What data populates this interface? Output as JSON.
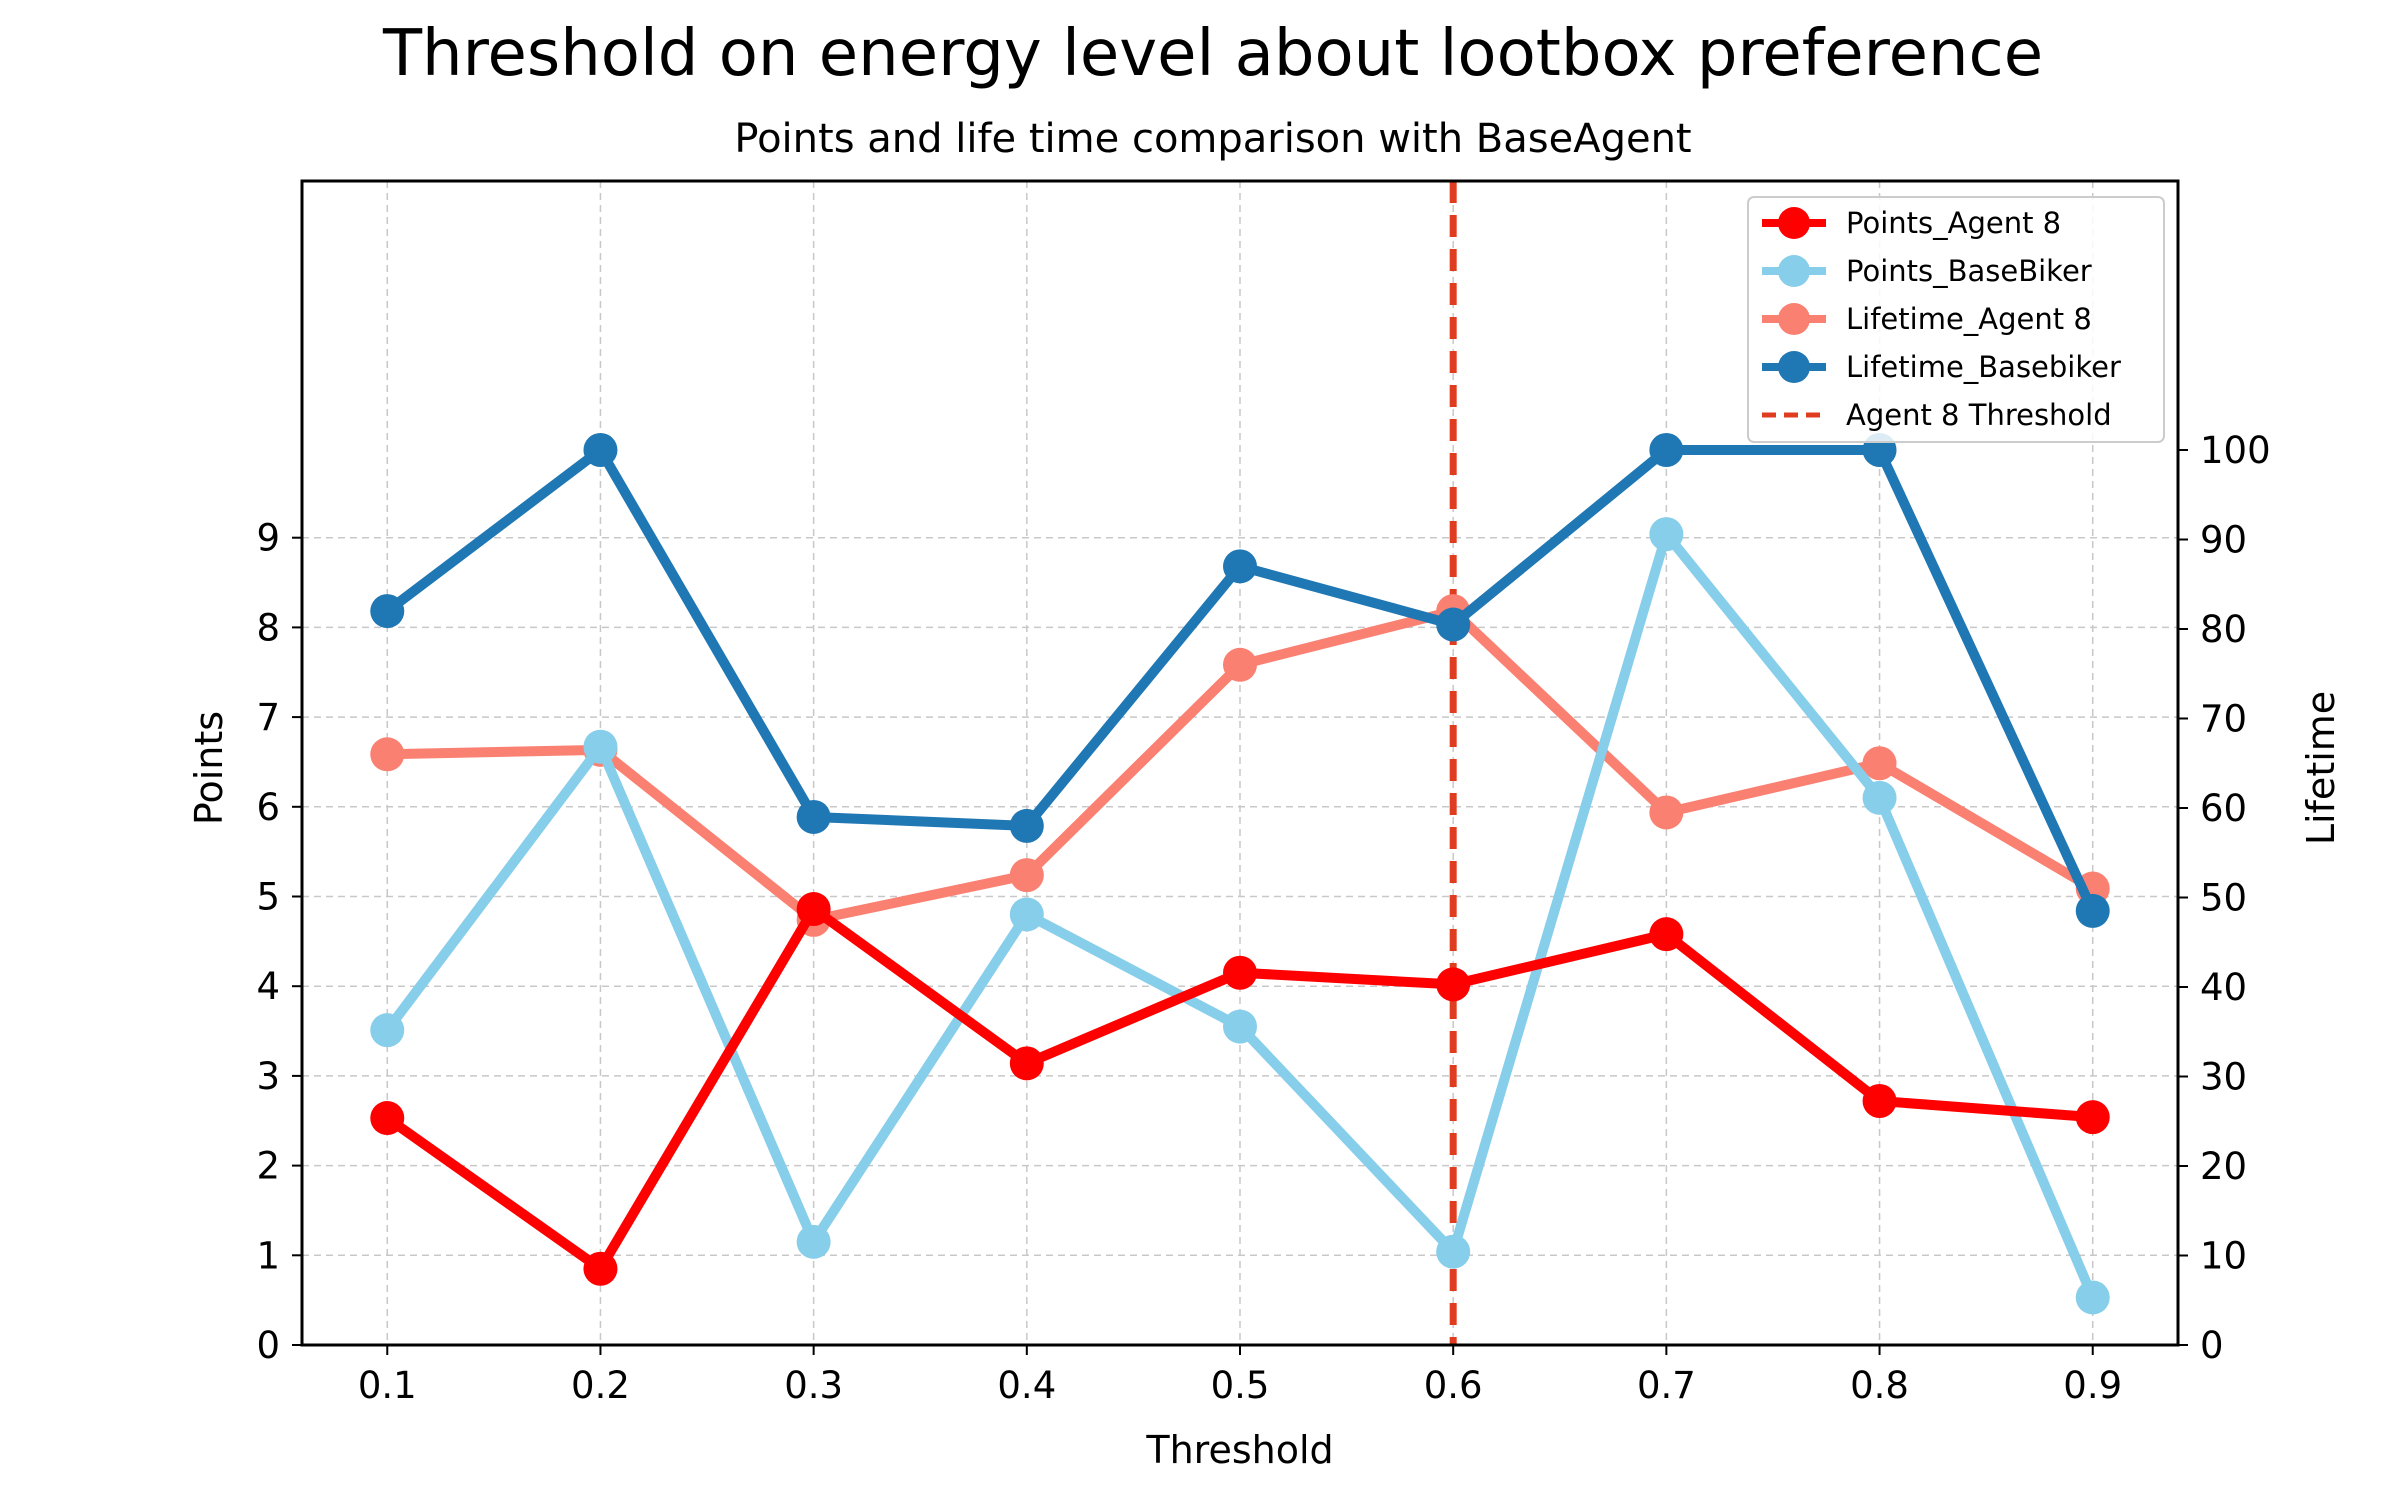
{
  "chart_data": {
    "type": "line",
    "title": "Threshold on energy level about lootbox preference",
    "subtitle": "Points and life time comparison with BaseAgent",
    "xlabel": "Threshold",
    "ylabel_left": "Points",
    "ylabel_right": "Lifetime",
    "x": [
      0.1,
      0.2,
      0.3,
      0.4,
      0.5,
      0.6,
      0.7,
      0.8,
      0.9
    ],
    "x_tick_labels": [
      "0.1",
      "0.2",
      "0.3",
      "0.4",
      "0.5",
      "0.6",
      "0.7",
      "0.8",
      "0.9"
    ],
    "y_left_ticks": [
      0,
      1,
      2,
      3,
      4,
      5,
      6,
      7,
      8,
      9
    ],
    "y_right_ticks": [
      0,
      10,
      20,
      30,
      40,
      50,
      60,
      70,
      80,
      90,
      100
    ],
    "ylim_left": [
      0,
      12.26
    ],
    "ylim_right": [
      0,
      100
    ],
    "grid": true,
    "legend_position": "top-right",
    "series": [
      {
        "name": "Points_Agent 8",
        "axis": "left",
        "color": "#ff0000",
        "values": [
          2.53,
          0.85,
          4.86,
          3.14,
          4.15,
          4.02,
          4.58,
          2.72,
          2.54
        ]
      },
      {
        "name": "Points_BaseBiker",
        "axis": "left",
        "color": "#87ceeb",
        "values": [
          3.51,
          6.67,
          1.15,
          4.8,
          3.55,
          1.04,
          9.04,
          6.1,
          0.53
        ]
      },
      {
        "name": "Lifetime_Agent 8",
        "axis": "right",
        "color": "#fa8072",
        "values": [
          66,
          66.5,
          47.5,
          52.5,
          76,
          82,
          59.5,
          65,
          51
        ]
      },
      {
        "name": "Lifetime_Basebiker",
        "axis": "right",
        "color": "#1f77b4",
        "values": [
          82,
          100,
          59,
          58,
          87,
          80.5,
          100,
          100,
          48.5
        ]
      }
    ],
    "vline": {
      "name": "Agent 8 Threshold",
      "x": 0.6,
      "color": "#e03c1f",
      "style": "dashed"
    }
  }
}
